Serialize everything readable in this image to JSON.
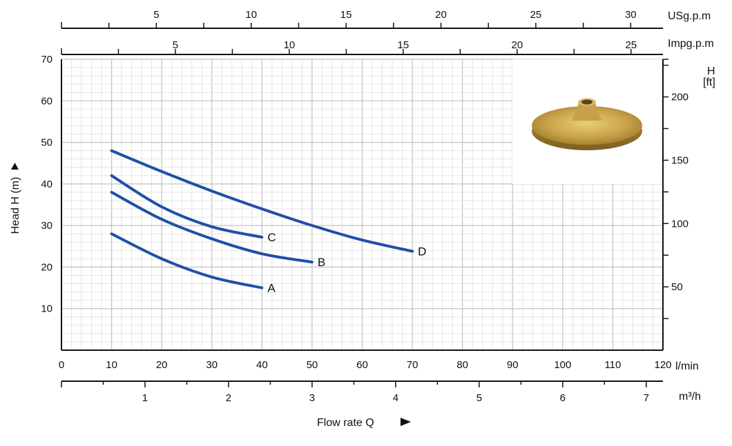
{
  "chart_data": {
    "type": "line",
    "xlabel": "Flow rate Q",
    "ylabel": "Head H (m)",
    "x_unit": "l/min",
    "xlim": [
      0,
      120
    ],
    "ylim": [
      0,
      70
    ],
    "x_ticks": [
      0,
      10,
      20,
      30,
      40,
      50,
      60,
      70,
      80,
      90,
      100,
      110,
      120
    ],
    "y_ticks": [
      10,
      20,
      30,
      40,
      50,
      60,
      70
    ],
    "grid": true,
    "series": [
      {
        "name": "A",
        "x": [
          10,
          20,
          30,
          40
        ],
        "y": [
          28,
          22,
          17.6,
          15
        ]
      },
      {
        "name": "B",
        "x": [
          10,
          20,
          30,
          40,
          50
        ],
        "y": [
          38,
          31.5,
          26.8,
          23.2,
          21.2
        ]
      },
      {
        "name": "C",
        "x": [
          10,
          20,
          30,
          40
        ],
        "y": [
          42,
          34.5,
          29.7,
          27.2
        ]
      },
      {
        "name": "D",
        "x": [
          10,
          20,
          30,
          40,
          50,
          60,
          70
        ],
        "y": [
          48,
          43,
          38.3,
          34,
          30,
          26.5,
          23.8
        ]
      }
    ],
    "line_color": "#1f4fa8",
    "secondary_axes": {
      "m3h": {
        "label": "m³/h",
        "min": 0,
        "max": 7.2,
        "ticks": [
          1,
          2,
          3,
          4,
          5,
          6,
          7
        ]
      },
      "usgpm": {
        "label": "USg.p.m",
        "min": 0,
        "max": 31.7,
        "ticks": [
          5,
          10,
          15,
          20,
          25,
          30
        ]
      },
      "impgpm": {
        "label": "Impg.p.m",
        "min": 0,
        "max": 26.4,
        "ticks": [
          5,
          10,
          15,
          20,
          25
        ]
      },
      "ft": {
        "label_line1": "H",
        "label_line2": "[ft]",
        "min": 0,
        "max": 229.7,
        "ticks": [
          50,
          100,
          150,
          200
        ]
      }
    }
  },
  "image": {
    "name": "brass-impeller"
  }
}
